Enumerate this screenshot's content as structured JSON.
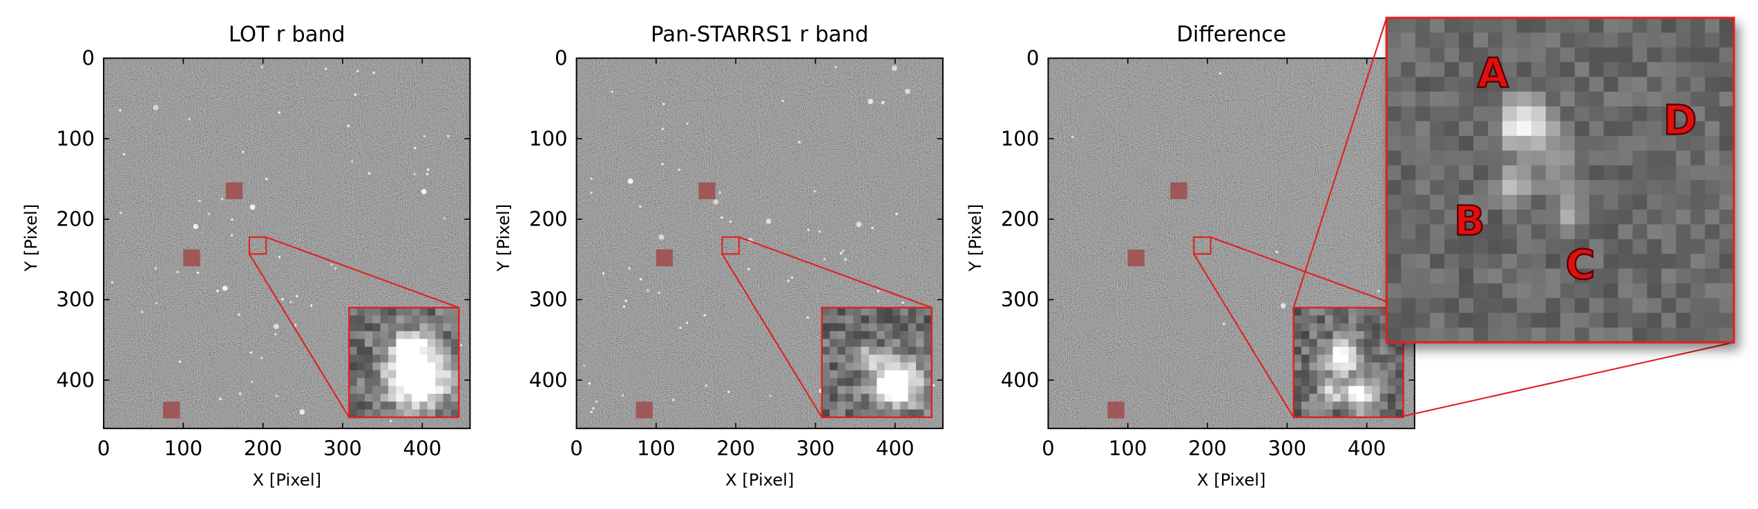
{
  "panels": [
    {
      "title": "LOT r band",
      "xlabel": "X [Pixel]",
      "ylabel": "Y [Pixel]",
      "xlim": [
        0,
        460
      ],
      "ylim": [
        0,
        460
      ],
      "xticks": [
        0,
        100,
        200,
        300,
        400
      ],
      "yticks": [
        0,
        100,
        200,
        300,
        400
      ]
    },
    {
      "title": "Pan-STARRS1 r band",
      "xlabel": "X [Pixel]",
      "ylabel": "Y [Pixel]",
      "xlim": [
        0,
        460
      ],
      "ylim": [
        0,
        460
      ],
      "xticks": [
        0,
        100,
        200,
        300,
        400
      ],
      "yticks": [
        0,
        100,
        200,
        300,
        400
      ]
    },
    {
      "title": "Difference",
      "xlabel": "X [Pixel]",
      "ylabel": "Y [Pixel]",
      "xlim": [
        0,
        460
      ],
      "ylim": [
        0,
        460
      ],
      "xticks": [
        0,
        100,
        200,
        300,
        400
      ],
      "yticks": [
        0,
        100,
        200,
        300,
        400
      ]
    }
  ],
  "zoom_labels": [
    "A",
    "B",
    "C",
    "D"
  ]
}
